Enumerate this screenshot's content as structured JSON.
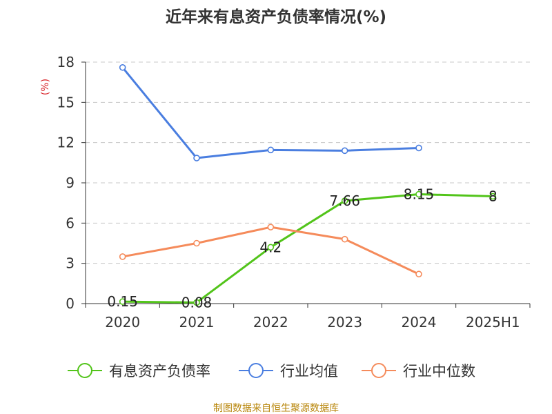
{
  "chart_data": {
    "type": "line",
    "title": "近年来有息资产负债率情况(%)",
    "ylabel": "(%)",
    "xlabel": "",
    "categories": [
      "2020",
      "2021",
      "2022",
      "2023",
      "2024",
      "2025H1"
    ],
    "ylim": [
      0,
      18
    ],
    "yticks": [
      0,
      3,
      6,
      9,
      12,
      15,
      18
    ],
    "grid": true,
    "legend_position": "bottom",
    "series": [
      {
        "name": "有息资产负债率",
        "color": "#52c41a",
        "values": [
          0.15,
          0.08,
          4.2,
          7.66,
          8.15,
          8
        ],
        "labels": [
          "0.15",
          "0.08",
          "4.2",
          "7.66",
          "8.15",
          "8"
        ]
      },
      {
        "name": "行业均值",
        "color": "#4a7ee0",
        "values": [
          17.6,
          10.85,
          11.45,
          11.4,
          11.6,
          null
        ]
      },
      {
        "name": "行业中位数",
        "color": "#f58b5b",
        "values": [
          3.5,
          4.5,
          5.7,
          4.8,
          2.2,
          null
        ]
      }
    ]
  },
  "source_text": "制图数据来自恒生聚源数据库"
}
